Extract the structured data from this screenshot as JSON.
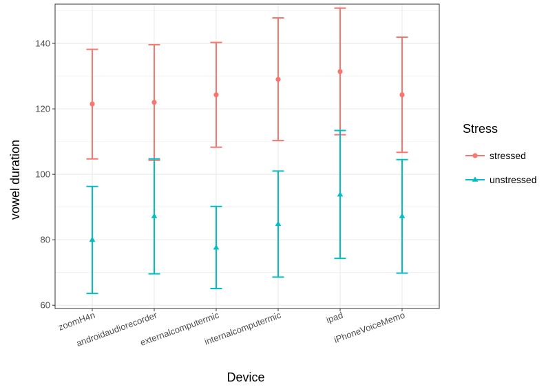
{
  "chart_data": {
    "type": "errorbar",
    "xlabel": "Device",
    "ylabel": "vowel duration",
    "categories": [
      "zoomH4n",
      "androidaudiorecorder",
      "externalcomputermic",
      "internalcomputermic",
      "ipad",
      "iPhoneVoiceMemo"
    ],
    "ylim": [
      59,
      152
    ],
    "yticks": [
      60,
      80,
      100,
      120,
      140
    ],
    "grid": true,
    "legend": {
      "title": "Stress",
      "position": "right"
    },
    "series": [
      {
        "name": "stressed",
        "color": "#F8766D",
        "marker": "circle",
        "values": [
          121.5,
          122.0,
          124.3,
          129.0,
          131.4,
          124.3
        ],
        "lower": [
          104.7,
          104.3,
          108.3,
          110.3,
          112.1,
          106.7
        ],
        "upper": [
          138.2,
          139.6,
          140.3,
          147.8,
          150.8,
          141.9
        ]
      },
      {
        "name": "unstressed",
        "color": "#00BFC4",
        "marker": "triangle",
        "values": [
          80.0,
          87.2,
          77.6,
          84.8,
          93.8,
          87.2
        ],
        "lower": [
          63.6,
          69.6,
          65.1,
          68.6,
          74.3,
          69.8
        ],
        "upper": [
          96.3,
          104.7,
          90.2,
          101.0,
          113.4,
          104.5
        ]
      }
    ]
  }
}
